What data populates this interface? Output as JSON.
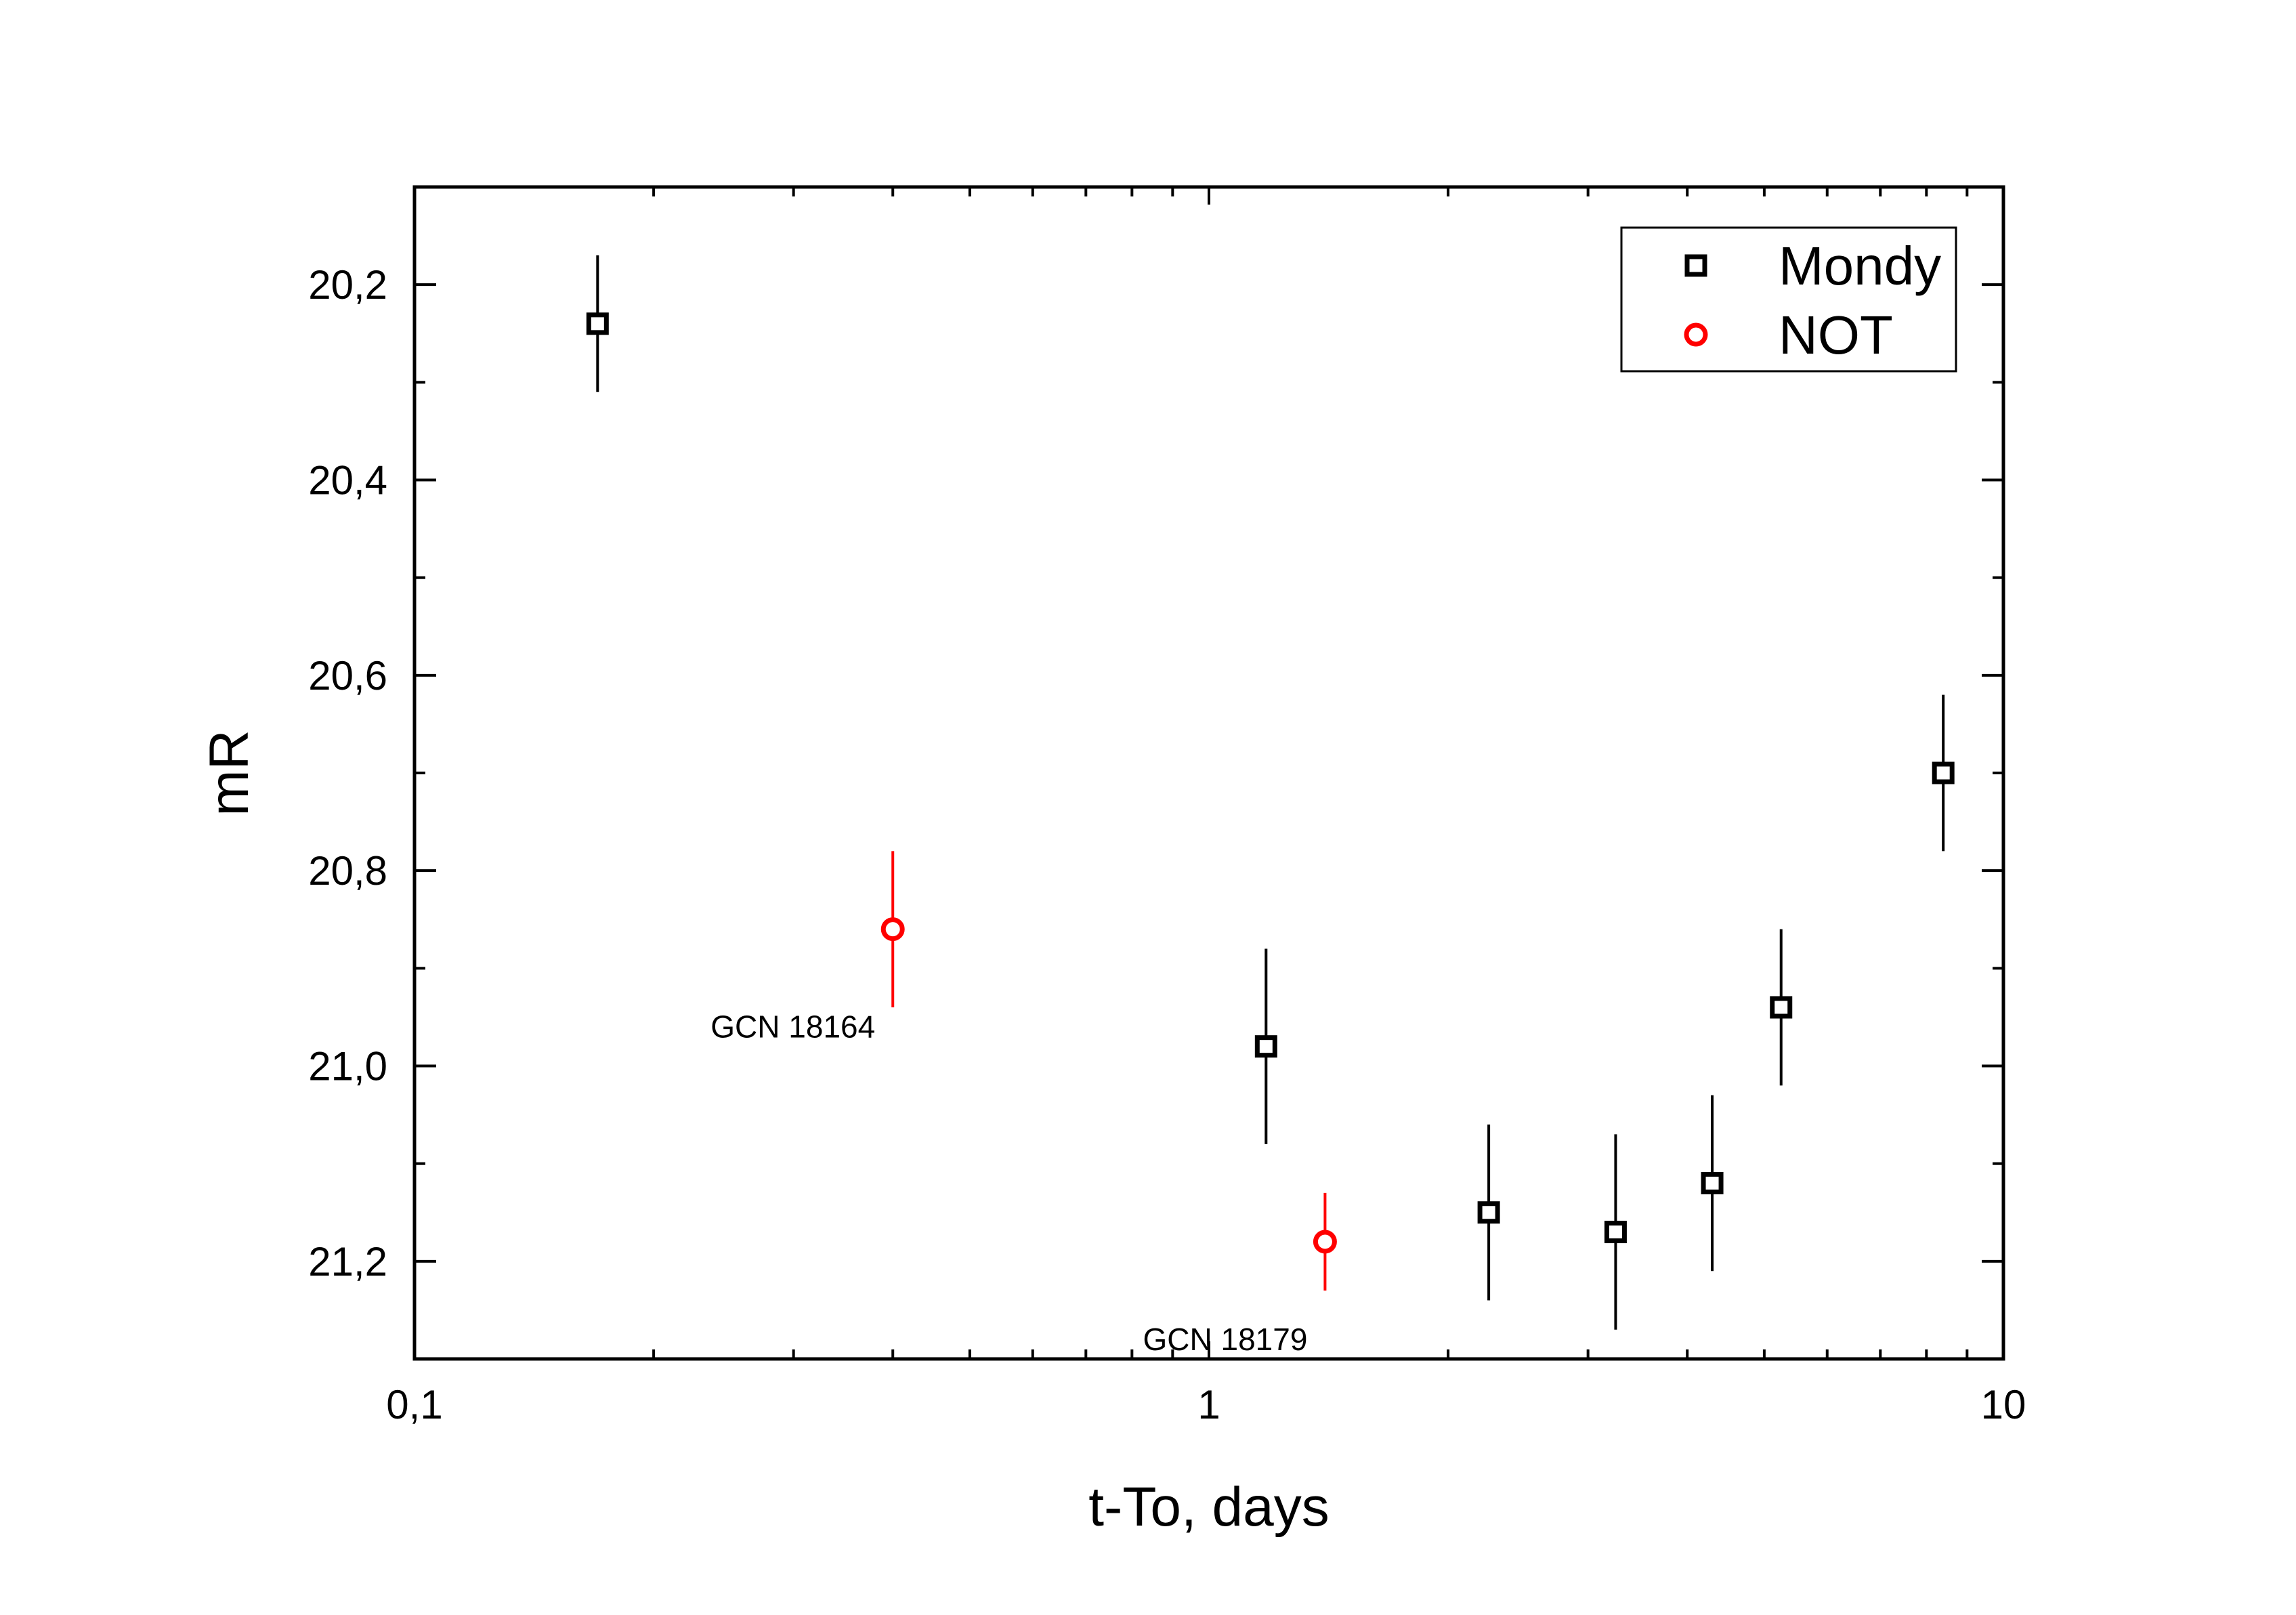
{
  "chart_data": {
    "type": "scatter",
    "xlabel": "t-To, days",
    "ylabel": "mR",
    "xscale": "log",
    "xlim": [
      0.1,
      10
    ],
    "ylim": [
      21.3,
      20.1
    ],
    "y_inverted": true,
    "x_ticks": [
      {
        "value": 0.1,
        "label": "0,1"
      },
      {
        "value": 1,
        "label": "1"
      },
      {
        "value": 10,
        "label": "10"
      }
    ],
    "y_ticks": [
      {
        "value": 20.2,
        "label": "20,2"
      },
      {
        "value": 20.4,
        "label": "20,4"
      },
      {
        "value": 20.6,
        "label": "20,6"
      },
      {
        "value": 20.8,
        "label": "20,8"
      },
      {
        "value": 21.0,
        "label": "21,0"
      },
      {
        "value": 21.2,
        "label": "21,2"
      }
    ],
    "grid": false,
    "legend_position": "top-right",
    "series": [
      {
        "name": "Mondy",
        "marker": "square",
        "color": "#000000",
        "points": [
          {
            "x": 0.17,
            "y": 20.24,
            "err": 0.07
          },
          {
            "x": 1.18,
            "y": 20.98,
            "err": 0.1
          },
          {
            "x": 2.25,
            "y": 21.15,
            "err": 0.09
          },
          {
            "x": 3.25,
            "y": 21.17,
            "err": 0.1
          },
          {
            "x": 4.3,
            "y": 21.12,
            "err": 0.09
          },
          {
            "x": 5.25,
            "y": 20.94,
            "err": 0.08
          },
          {
            "x": 8.4,
            "y": 20.7,
            "err": 0.08
          }
        ]
      },
      {
        "name": "NOT",
        "marker": "circle",
        "color": "#ff0000",
        "points": [
          {
            "x": 0.4,
            "y": 20.86,
            "err": 0.08
          },
          {
            "x": 1.4,
            "y": 21.18,
            "err": 0.05
          }
        ]
      }
    ],
    "annotations": [
      {
        "text": "GCN 18164",
        "x": 0.4,
        "y": 20.86
      },
      {
        "text": "GCN 18179",
        "x": 1.4,
        "y": 21.18
      }
    ]
  }
}
